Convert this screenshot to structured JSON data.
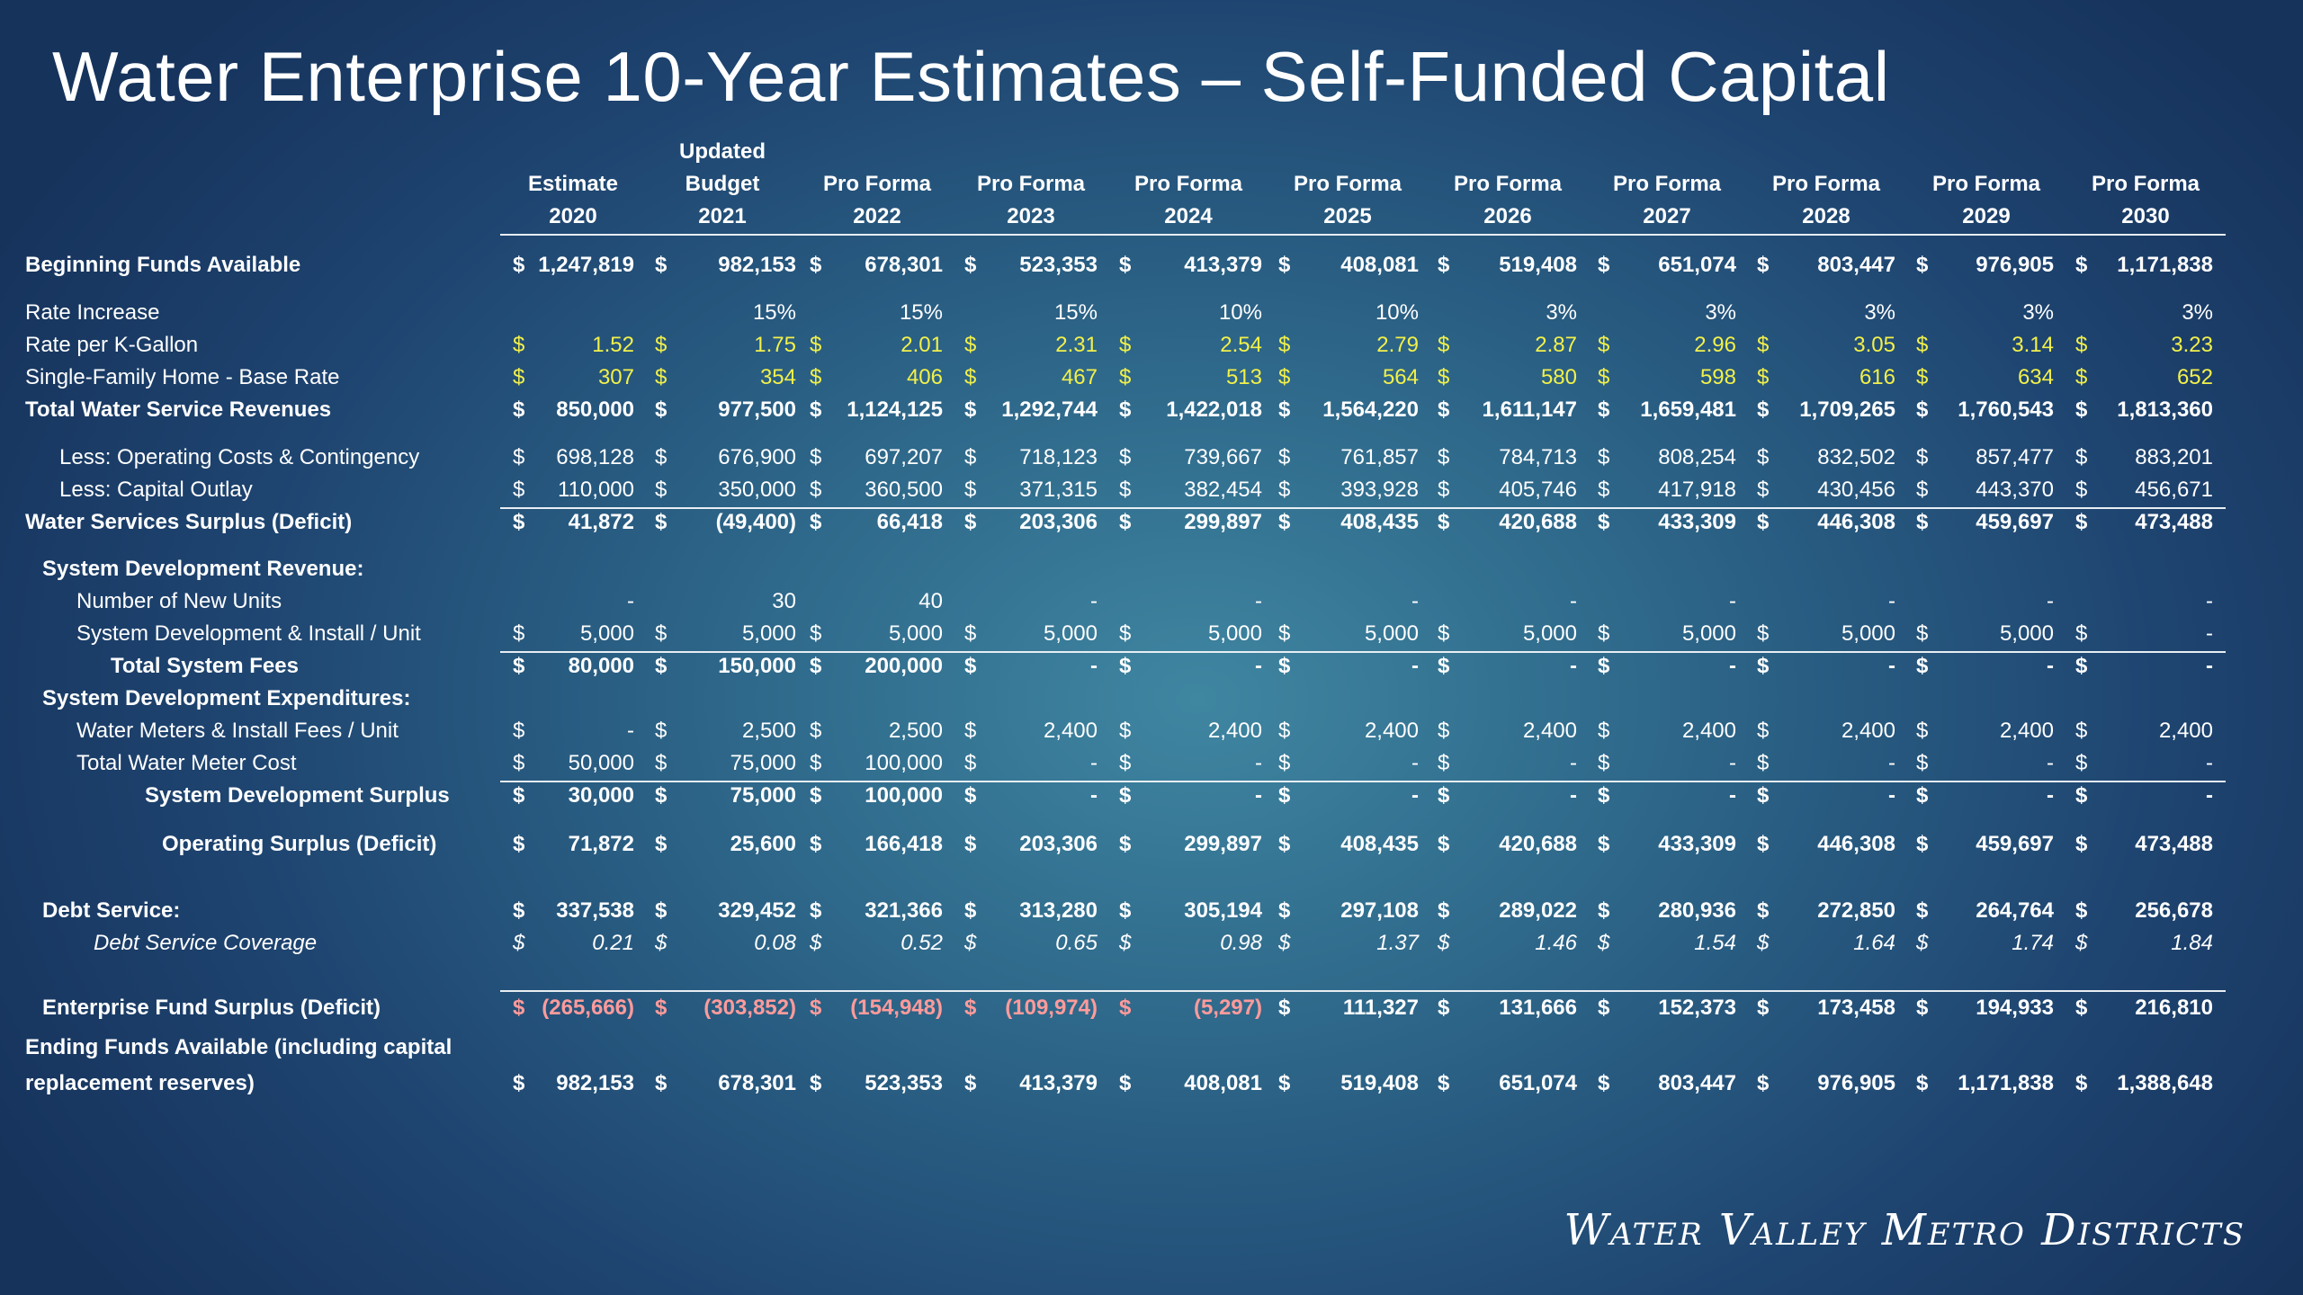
{
  "title": "Water Enterprise 10-Year Estimates – Self-Funded Capital",
  "logo_text": "Water Valley Metro Districts",
  "columns": [
    {
      "l1": "",
      "l2": "Estimate",
      "l3": "2020"
    },
    {
      "l1": "Updated",
      "l2": "Budget",
      "l3": "2021"
    },
    {
      "l1": "",
      "l2": "Pro Forma",
      "l3": "2022"
    },
    {
      "l1": "",
      "l2": "Pro Forma",
      "l3": "2023"
    },
    {
      "l1": "",
      "l2": "Pro Forma",
      "l3": "2024"
    },
    {
      "l1": "",
      "l2": "Pro Forma",
      "l3": "2025"
    },
    {
      "l1": "",
      "l2": "Pro Forma",
      "l3": "2026"
    },
    {
      "l1": "",
      "l2": "Pro Forma",
      "l3": "2027"
    },
    {
      "l1": "",
      "l2": "Pro Forma",
      "l3": "2028"
    },
    {
      "l1": "",
      "l2": "Pro Forma",
      "l3": "2029"
    },
    {
      "l1": "",
      "l2": "Pro Forma",
      "l3": "2030"
    }
  ],
  "rows": [
    {
      "label": "Beginning Funds Available",
      "indent": 0,
      "bold": true,
      "dollar": true,
      "values": [
        "1,247,819",
        "982,153",
        "678,301",
        "523,353",
        "413,379",
        "408,081",
        "519,408",
        "651,074",
        "803,447",
        "976,905",
        "1,171,838"
      ]
    },
    {
      "label": "Rate Increase",
      "indent": 0,
      "bold": false,
      "dollar": false,
      "pct": true,
      "values": [
        "",
        "15%",
        "15%",
        "15%",
        "10%",
        "10%",
        "3%",
        "3%",
        "3%",
        "3%",
        "3%"
      ]
    },
    {
      "label": "Rate per K-Gallon",
      "indent": 0,
      "bold": false,
      "dollar": true,
      "color": "yellow",
      "values": [
        "1.52",
        "1.75",
        "2.01",
        "2.31",
        "2.54",
        "2.79",
        "2.87",
        "2.96",
        "3.05",
        "3.14",
        "3.23"
      ]
    },
    {
      "label": "Single-Family Home - Base Rate",
      "indent": 0,
      "bold": false,
      "dollar": true,
      "color": "yellow",
      "values": [
        "307",
        "354",
        "406",
        "467",
        "513",
        "564",
        "580",
        "598",
        "616",
        "634",
        "652"
      ]
    },
    {
      "label": "Total Water Service Revenues",
      "indent": 0,
      "bold": true,
      "dollar": true,
      "values": [
        "850,000",
        "977,500",
        "1,124,125",
        "1,292,744",
        "1,422,018",
        "1,564,220",
        "1,611,147",
        "1,659,481",
        "1,709,265",
        "1,760,543",
        "1,813,360"
      ]
    },
    {
      "label": "Less: Operating Costs & Contingency",
      "indent": 1,
      "bold": false,
      "dollar": true,
      "values": [
        "698,128",
        "676,900",
        "697,207",
        "718,123",
        "739,667",
        "761,857",
        "784,713",
        "808,254",
        "832,502",
        "857,477",
        "883,201"
      ]
    },
    {
      "label": "Less: Capital Outlay",
      "indent": 1,
      "bold": false,
      "dollar": true,
      "values": [
        "110,000",
        "350,000",
        "360,500",
        "371,315",
        "382,454",
        "393,928",
        "405,746",
        "417,918",
        "430,456",
        "443,370",
        "456,671"
      ]
    },
    {
      "label": "Water Services Surplus (Deficit)",
      "indent": 0,
      "bold": true,
      "dollar": true,
      "values": [
        "41,872",
        "(49,400)",
        "66,418",
        "203,306",
        "299,897",
        "408,435",
        "420,688",
        "433,309",
        "446,308",
        "459,697",
        "473,488"
      ]
    },
    {
      "label": "System Development Revenue:",
      "indent": 0.5,
      "bold": true,
      "dollar": false,
      "values": []
    },
    {
      "label": "Number of New Units",
      "indent": 1.5,
      "bold": false,
      "dollar": false,
      "values": [
        "-",
        "30",
        "40",
        "-",
        "-",
        "-",
        "-",
        "-",
        "-",
        "-",
        "-"
      ]
    },
    {
      "label": "System Development & Install / Unit",
      "indent": 1.5,
      "bold": false,
      "dollar": true,
      "values": [
        "5,000",
        "5,000",
        "5,000",
        "5,000",
        "5,000",
        "5,000",
        "5,000",
        "5,000",
        "5,000",
        "5,000",
        "-"
      ]
    },
    {
      "label": "Total System Fees",
      "indent": 2.5,
      "bold": true,
      "dollar": true,
      "values": [
        "80,000",
        "150,000",
        "200,000",
        "-",
        "-",
        "-",
        "-",
        "-",
        "-",
        "-",
        "-"
      ]
    },
    {
      "label": "System Development Expenditures:",
      "indent": 0.5,
      "bold": true,
      "dollar": false,
      "values": []
    },
    {
      "label": "Water Meters & Install Fees / Unit",
      "indent": 1.5,
      "bold": false,
      "dollar": true,
      "values": [
        "-",
        "2,500",
        "2,500",
        "2,400",
        "2,400",
        "2,400",
        "2,400",
        "2,400",
        "2,400",
        "2,400",
        "2,400"
      ]
    },
    {
      "label": "Total Water Meter Cost",
      "indent": 1.5,
      "bold": false,
      "dollar": true,
      "values": [
        "50,000",
        "75,000",
        "100,000",
        "-",
        "-",
        "-",
        "-",
        "-",
        "-",
        "-",
        "-"
      ]
    },
    {
      "label": "System Development Surplus",
      "indent": 3.5,
      "bold": true,
      "dollar": true,
      "values": [
        "30,000",
        "75,000",
        "100,000",
        "-",
        "-",
        "-",
        "-",
        "-",
        "-",
        "-",
        "-"
      ]
    },
    {
      "label": "Operating Surplus (Deficit)",
      "indent": 4,
      "bold": true,
      "dollar": true,
      "values": [
        "71,872",
        "25,600",
        "166,418",
        "203,306",
        "299,897",
        "408,435",
        "420,688",
        "433,309",
        "446,308",
        "459,697",
        "473,488"
      ]
    },
    {
      "label": "Debt Service:",
      "indent": 0.5,
      "bold": true,
      "dollar": true,
      "values": [
        "337,538",
        "329,452",
        "321,366",
        "313,280",
        "305,194",
        "297,108",
        "289,022",
        "280,936",
        "272,850",
        "264,764",
        "256,678"
      ]
    },
    {
      "label": "Debt Service Coverage",
      "indent": 2,
      "bold": false,
      "italic": true,
      "dollar": true,
      "values": [
        "0.21",
        "0.08",
        "0.52",
        "0.65",
        "0.98",
        "1.37",
        "1.46",
        "1.54",
        "1.64",
        "1.74",
        "1.84"
      ]
    },
    {
      "label": "Enterprise Fund Surplus (Deficit)",
      "indent": 0.5,
      "bold": true,
      "dollar": true,
      "red_count": 5,
      "values": [
        "(265,666)",
        "(303,852)",
        "(154,948)",
        "(109,974)",
        "(5,297)",
        "111,327",
        "131,666",
        "152,373",
        "173,458",
        "194,933",
        "216,810"
      ]
    },
    {
      "label": "Ending Funds Available (including capital",
      "label2": "replacement reserves)",
      "indent": 0,
      "bold": true,
      "dollar": true,
      "values": [
        "982,153",
        "678,301",
        "523,353",
        "413,379",
        "408,081",
        "519,408",
        "651,074",
        "803,447",
        "976,905",
        "1,171,838",
        "1,388,648"
      ]
    }
  ]
}
